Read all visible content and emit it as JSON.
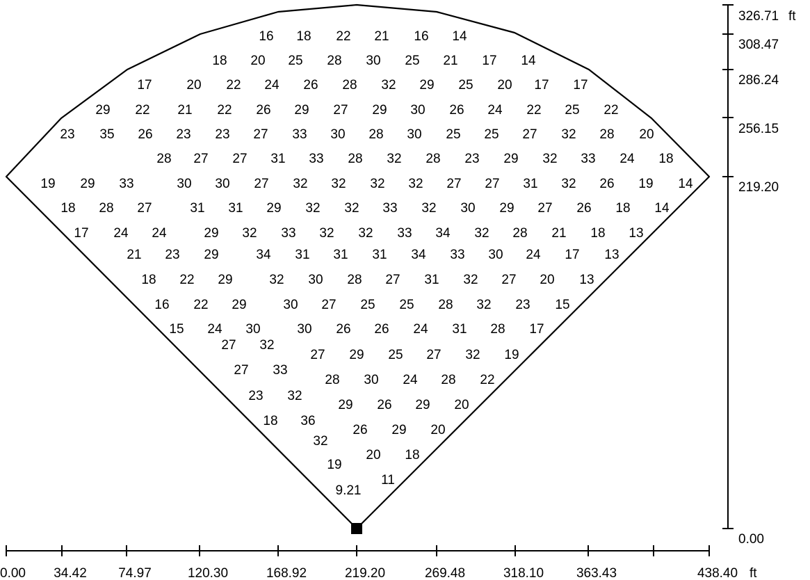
{
  "field": {
    "x_axis": {
      "tick_labels": [
        "0.00",
        "34.42",
        "74.97",
        "120.30",
        "168.92",
        "219.20",
        "269.48",
        "318.10",
        "363.43",
        "",
        "438.40"
      ],
      "unit": "ft"
    },
    "y_axis": {
      "tick_labels": [
        "0.00",
        "219.20",
        "256.15",
        "286.24",
        "308.47",
        "326.71"
      ],
      "unit": "ft"
    },
    "home_plate": "black-square-marker",
    "rows": [
      [
        "16",
        "18",
        "22",
        "21",
        "16",
        "14"
      ],
      [
        "18",
        "20",
        "25",
        "28",
        "30",
        "25",
        "21",
        "17",
        "14"
      ],
      [
        "17",
        "20",
        "22",
        "24",
        "26",
        "28",
        "32",
        "29",
        "25",
        "20",
        "17",
        "17"
      ],
      [
        "29",
        "22",
        "21",
        "22",
        "26",
        "29",
        "27",
        "29",
        "30",
        "26",
        "24",
        "22",
        "25",
        "22"
      ],
      [
        "23",
        "35",
        "26",
        "23",
        "23",
        "27",
        "33",
        "30",
        "28",
        "30",
        "25",
        "25",
        "27",
        "32",
        "28",
        "20"
      ],
      [
        "28",
        "27",
        "27",
        "31",
        "33",
        "28",
        "32",
        "28",
        "23",
        "29",
        "32",
        "33",
        "24",
        "18"
      ],
      [
        "19",
        "29",
        "33",
        "30",
        "30",
        "27",
        "32",
        "32",
        "32",
        "32",
        "27",
        "27",
        "31",
        "32",
        "26",
        "19",
        "14"
      ],
      [
        "18",
        "28",
        "27",
        "31",
        "31",
        "29",
        "32",
        "32",
        "33",
        "32",
        "30",
        "29",
        "27",
        "26",
        "18",
        "14"
      ],
      [
        "17",
        "24",
        "24",
        "29",
        "32",
        "33",
        "32",
        "32",
        "33",
        "34",
        "32",
        "28",
        "21",
        "18",
        "13"
      ],
      [
        "21",
        "23",
        "29",
        "34",
        "31",
        "31",
        "31",
        "34",
        "33",
        "30",
        "24",
        "17",
        "13"
      ],
      [
        "18",
        "22",
        "29",
        "32",
        "30",
        "28",
        "27",
        "31",
        "32",
        "27",
        "20",
        "13"
      ],
      [
        "16",
        "22",
        "29",
        "30",
        "27",
        "25",
        "25",
        "28",
        "32",
        "23",
        "15"
      ],
      [
        "15",
        "24",
        "30",
        "30",
        "26",
        "26",
        "24",
        "31",
        "28",
        "17"
      ],
      [
        "27",
        "32",
        "27",
        "29",
        "25",
        "27",
        "32",
        "19"
      ],
      [
        "27",
        "33",
        "28",
        "30",
        "24",
        "28",
        "22"
      ],
      [
        "23",
        "32",
        "29",
        "26",
        "29",
        "20"
      ],
      [
        "18",
        "36",
        "26",
        "29",
        "20"
      ],
      [
        "32",
        "20",
        "18"
      ],
      [
        "19",
        "11"
      ],
      [
        "9.21"
      ]
    ]
  }
}
